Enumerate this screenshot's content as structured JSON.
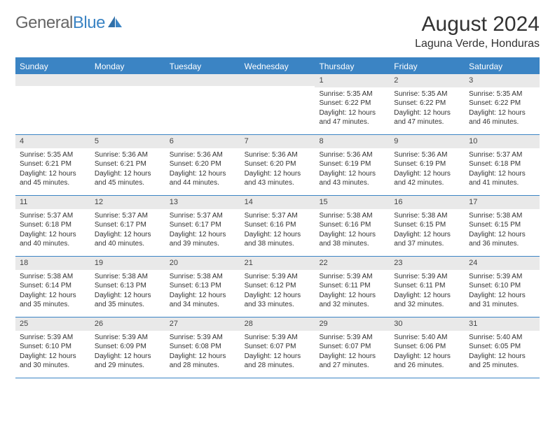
{
  "brand": {
    "part1": "General",
    "part2": "Blue"
  },
  "title": "August 2024",
  "location": "Laguna Verde, Honduras",
  "colors": {
    "accent": "#3b84c4",
    "daynum_bg": "#e9e9e9",
    "text": "#333333",
    "bg": "#ffffff"
  },
  "day_headers": [
    "Sunday",
    "Monday",
    "Tuesday",
    "Wednesday",
    "Thursday",
    "Friday",
    "Saturday"
  ],
  "weeks": [
    [
      {
        "n": "",
        "sr": "",
        "ss": "",
        "dl": ""
      },
      {
        "n": "",
        "sr": "",
        "ss": "",
        "dl": ""
      },
      {
        "n": "",
        "sr": "",
        "ss": "",
        "dl": ""
      },
      {
        "n": "",
        "sr": "",
        "ss": "",
        "dl": ""
      },
      {
        "n": "1",
        "sr": "Sunrise: 5:35 AM",
        "ss": "Sunset: 6:22 PM",
        "dl": "Daylight: 12 hours and 47 minutes."
      },
      {
        "n": "2",
        "sr": "Sunrise: 5:35 AM",
        "ss": "Sunset: 6:22 PM",
        "dl": "Daylight: 12 hours and 47 minutes."
      },
      {
        "n": "3",
        "sr": "Sunrise: 5:35 AM",
        "ss": "Sunset: 6:22 PM",
        "dl": "Daylight: 12 hours and 46 minutes."
      }
    ],
    [
      {
        "n": "4",
        "sr": "Sunrise: 5:35 AM",
        "ss": "Sunset: 6:21 PM",
        "dl": "Daylight: 12 hours and 45 minutes."
      },
      {
        "n": "5",
        "sr": "Sunrise: 5:36 AM",
        "ss": "Sunset: 6:21 PM",
        "dl": "Daylight: 12 hours and 45 minutes."
      },
      {
        "n": "6",
        "sr": "Sunrise: 5:36 AM",
        "ss": "Sunset: 6:20 PM",
        "dl": "Daylight: 12 hours and 44 minutes."
      },
      {
        "n": "7",
        "sr": "Sunrise: 5:36 AM",
        "ss": "Sunset: 6:20 PM",
        "dl": "Daylight: 12 hours and 43 minutes."
      },
      {
        "n": "8",
        "sr": "Sunrise: 5:36 AM",
        "ss": "Sunset: 6:19 PM",
        "dl": "Daylight: 12 hours and 43 minutes."
      },
      {
        "n": "9",
        "sr": "Sunrise: 5:36 AM",
        "ss": "Sunset: 6:19 PM",
        "dl": "Daylight: 12 hours and 42 minutes."
      },
      {
        "n": "10",
        "sr": "Sunrise: 5:37 AM",
        "ss": "Sunset: 6:18 PM",
        "dl": "Daylight: 12 hours and 41 minutes."
      }
    ],
    [
      {
        "n": "11",
        "sr": "Sunrise: 5:37 AM",
        "ss": "Sunset: 6:18 PM",
        "dl": "Daylight: 12 hours and 40 minutes."
      },
      {
        "n": "12",
        "sr": "Sunrise: 5:37 AM",
        "ss": "Sunset: 6:17 PM",
        "dl": "Daylight: 12 hours and 40 minutes."
      },
      {
        "n": "13",
        "sr": "Sunrise: 5:37 AM",
        "ss": "Sunset: 6:17 PM",
        "dl": "Daylight: 12 hours and 39 minutes."
      },
      {
        "n": "14",
        "sr": "Sunrise: 5:37 AM",
        "ss": "Sunset: 6:16 PM",
        "dl": "Daylight: 12 hours and 38 minutes."
      },
      {
        "n": "15",
        "sr": "Sunrise: 5:38 AM",
        "ss": "Sunset: 6:16 PM",
        "dl": "Daylight: 12 hours and 38 minutes."
      },
      {
        "n": "16",
        "sr": "Sunrise: 5:38 AM",
        "ss": "Sunset: 6:15 PM",
        "dl": "Daylight: 12 hours and 37 minutes."
      },
      {
        "n": "17",
        "sr": "Sunrise: 5:38 AM",
        "ss": "Sunset: 6:15 PM",
        "dl": "Daylight: 12 hours and 36 minutes."
      }
    ],
    [
      {
        "n": "18",
        "sr": "Sunrise: 5:38 AM",
        "ss": "Sunset: 6:14 PM",
        "dl": "Daylight: 12 hours and 35 minutes."
      },
      {
        "n": "19",
        "sr": "Sunrise: 5:38 AM",
        "ss": "Sunset: 6:13 PM",
        "dl": "Daylight: 12 hours and 35 minutes."
      },
      {
        "n": "20",
        "sr": "Sunrise: 5:38 AM",
        "ss": "Sunset: 6:13 PM",
        "dl": "Daylight: 12 hours and 34 minutes."
      },
      {
        "n": "21",
        "sr": "Sunrise: 5:39 AM",
        "ss": "Sunset: 6:12 PM",
        "dl": "Daylight: 12 hours and 33 minutes."
      },
      {
        "n": "22",
        "sr": "Sunrise: 5:39 AM",
        "ss": "Sunset: 6:11 PM",
        "dl": "Daylight: 12 hours and 32 minutes."
      },
      {
        "n": "23",
        "sr": "Sunrise: 5:39 AM",
        "ss": "Sunset: 6:11 PM",
        "dl": "Daylight: 12 hours and 32 minutes."
      },
      {
        "n": "24",
        "sr": "Sunrise: 5:39 AM",
        "ss": "Sunset: 6:10 PM",
        "dl": "Daylight: 12 hours and 31 minutes."
      }
    ],
    [
      {
        "n": "25",
        "sr": "Sunrise: 5:39 AM",
        "ss": "Sunset: 6:10 PM",
        "dl": "Daylight: 12 hours and 30 minutes."
      },
      {
        "n": "26",
        "sr": "Sunrise: 5:39 AM",
        "ss": "Sunset: 6:09 PM",
        "dl": "Daylight: 12 hours and 29 minutes."
      },
      {
        "n": "27",
        "sr": "Sunrise: 5:39 AM",
        "ss": "Sunset: 6:08 PM",
        "dl": "Daylight: 12 hours and 28 minutes."
      },
      {
        "n": "28",
        "sr": "Sunrise: 5:39 AM",
        "ss": "Sunset: 6:07 PM",
        "dl": "Daylight: 12 hours and 28 minutes."
      },
      {
        "n": "29",
        "sr": "Sunrise: 5:39 AM",
        "ss": "Sunset: 6:07 PM",
        "dl": "Daylight: 12 hours and 27 minutes."
      },
      {
        "n": "30",
        "sr": "Sunrise: 5:40 AM",
        "ss": "Sunset: 6:06 PM",
        "dl": "Daylight: 12 hours and 26 minutes."
      },
      {
        "n": "31",
        "sr": "Sunrise: 5:40 AM",
        "ss": "Sunset: 6:05 PM",
        "dl": "Daylight: 12 hours and 25 minutes."
      }
    ]
  ]
}
